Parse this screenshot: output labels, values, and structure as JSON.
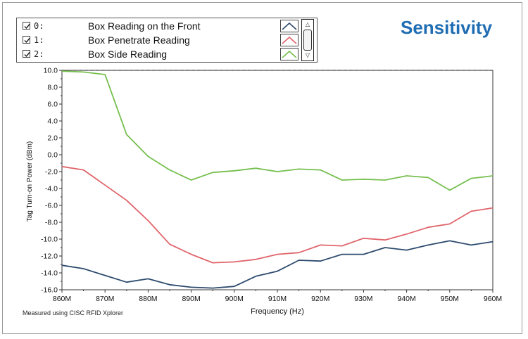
{
  "chart_data": {
    "type": "line",
    "title": "Sensitivity",
    "xlabel": "Frequency (Hz)",
    "ylabel": "Tag Turn-on Power (dBm)",
    "xlim": [
      860,
      960
    ],
    "ylim": [
      -16,
      10
    ],
    "x_ticks": [
      "860M",
      "870M",
      "880M",
      "890M",
      "900M",
      "910M",
      "920M",
      "930M",
      "940M",
      "950M",
      "960M"
    ],
    "y_ticks": [
      "10.0",
      "8.0",
      "6.0",
      "4.0",
      "2.0",
      "0.0",
      "-2.0",
      "-4.0",
      "-6.0",
      "-8.0",
      "-10.0",
      "-12.0",
      "-14.0",
      "-16.0"
    ],
    "x": [
      860,
      865,
      870,
      875,
      880,
      885,
      890,
      895,
      900,
      905,
      910,
      915,
      920,
      925,
      930,
      935,
      940,
      945,
      950,
      955,
      960
    ],
    "grid": false,
    "legend_position": "top-left",
    "series": [
      {
        "index": "0:",
        "name": "Box Reading on the Front",
        "color": "#2d4b6e",
        "values": [
          -13.1,
          -13.5,
          -14.3,
          -15.1,
          -14.7,
          -15.4,
          -15.7,
          -15.8,
          -15.6,
          -14.4,
          -13.8,
          -12.5,
          -12.6,
          -11.8,
          -11.8,
          -11.0,
          -11.3,
          -10.7,
          -10.2,
          -10.7,
          -10.3
        ]
      },
      {
        "index": "1:",
        "name": "Box Penetrate Reading",
        "color": "#e0656b",
        "values": [
          -1.4,
          -1.8,
          -3.6,
          -5.4,
          -7.8,
          -10.6,
          -11.8,
          -12.8,
          -12.7,
          -12.4,
          -11.8,
          -11.6,
          -10.7,
          -10.8,
          -9.9,
          -10.1,
          -9.4,
          -8.6,
          -8.2,
          -6.7,
          -6.3
        ]
      },
      {
        "index": "2:",
        "name": "Box Side Reading",
        "color": "#76bf4e",
        "values": [
          9.9,
          9.8,
          9.5,
          2.4,
          -0.2,
          -1.8,
          -3.0,
          -2.1,
          -1.9,
          -1.6,
          -2.0,
          -1.7,
          -1.8,
          -3.0,
          -2.9,
          -3.0,
          -2.5,
          -2.7,
          -4.2,
          -2.8,
          -2.5
        ]
      }
    ]
  },
  "footnote": "Measured using CISC RFID Xplorer"
}
